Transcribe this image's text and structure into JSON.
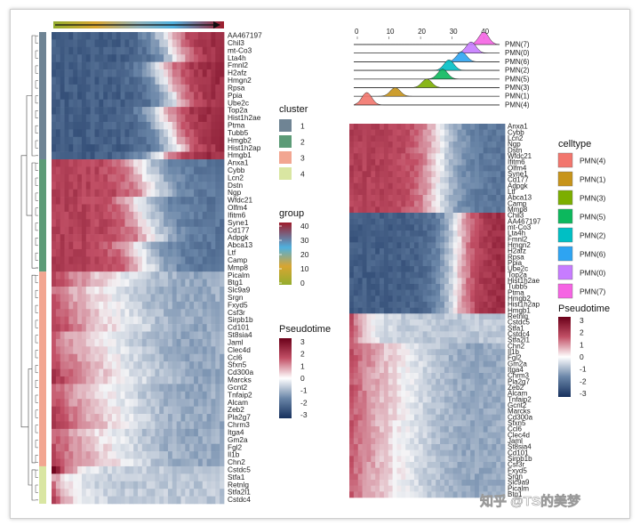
{
  "chart_data": [
    {
      "type": "heatmap",
      "title": "",
      "column_annotation": "pseudotime order (ascending, arrow)",
      "value_scale": {
        "name": "Pseudotime",
        "min": -3,
        "max": 3,
        "ticks": [
          3,
          2,
          1,
          0,
          -1,
          -2,
          -3
        ]
      },
      "clusters": [
        {
          "id": 1,
          "genes": [
            "AA467197",
            "Chil3",
            "mt-Co3",
            "Lta4h",
            "Fmnl2",
            "H2afz",
            "Hmgn2",
            "Rpsa",
            "Ppia",
            "Ube2c",
            "Top2a",
            "Hist1h2ae",
            "Ptma",
            "Tubb5",
            "Hmgb2",
            "Hist1h2ap",
            "Hmgb1"
          ]
        },
        {
          "id": 2,
          "genes": [
            "Anxa1",
            "Cybb",
            "Lcn2",
            "Dstn",
            "Ngp",
            "Wfdc21",
            "Olfm4",
            "Ifitm6",
            "Syne1",
            "Cd177",
            "Adpgk",
            "Abca13",
            "Ltf",
            "Camp",
            "Mmp8"
          ]
        },
        {
          "id": 3,
          "genes": [
            "Picalm",
            "Btg1",
            "Slc9a9",
            "Srgn",
            "Fxyd5",
            "Csf3r",
            "Sirpb1b",
            "Cd101",
            "St8sia4",
            "Jaml",
            "Clec4d",
            "Ccl6",
            "Sfxn5",
            "Cd300a",
            "Marcks",
            "Gcnt2",
            "Tnfaip2",
            "Alcam",
            "Zeb2",
            "Pla2g7",
            "Chrm3",
            "Itga4",
            "Gm2a",
            "Fgl2",
            "Il1b",
            "Chn2"
          ]
        },
        {
          "id": 4,
          "genes": [
            "Cstdc5",
            "Stfa1",
            "Retnlg",
            "Stfa2l1",
            "Cstdc4"
          ]
        }
      ]
    },
    {
      "type": "ridge",
      "title": "",
      "xlabel": "",
      "x_ticks": [
        0,
        10,
        20,
        30,
        40
      ],
      "xlim": [
        0,
        45
      ],
      "series": [
        {
          "name": "PMN(7)",
          "peak": 40,
          "height": 1.0
        },
        {
          "name": "PMN(0)",
          "peak": 36,
          "height": 0.9
        },
        {
          "name": "PMN(6)",
          "peak": 33,
          "height": 0.8
        },
        {
          "name": "PMN(2)",
          "peak": 29,
          "height": 0.85
        },
        {
          "name": "PMN(5)",
          "peak": 27,
          "height": 0.8
        },
        {
          "name": "PMN(3)",
          "peak": 22,
          "height": 0.7
        },
        {
          "name": "PMN(1)",
          "peak": 12,
          "height": 0.7
        },
        {
          "name": "PMN(4)",
          "peak": 3,
          "height": 1.0
        }
      ]
    },
    {
      "type": "heatmap",
      "title": "",
      "genes": [
        "Anxa1",
        "Cybb",
        "Lcn2",
        "Ngp",
        "Dstn",
        "Wfdc21",
        "Ifitm6",
        "Olfm4",
        "Syne1",
        "Cd177",
        "Adpgk",
        "Ltf",
        "Abca13",
        "Camp",
        "Mmp8",
        "Chil3",
        "AA467197",
        "mt-Co3",
        "Lta4h",
        "Fmnl2",
        "Hmgn2",
        "H2afz",
        "Rpsa",
        "Ppia",
        "Ube2c",
        "Top2a",
        "Hist1h2ae",
        "Tubb5",
        "Ptma",
        "Hmgb2",
        "Hist1h2ap",
        "Hmgb1",
        "Retnlg",
        "Cstdc5",
        "Stfa1",
        "Cstdc4",
        "Stfa2l1",
        "Chn2",
        "Il1b",
        "Fgl2",
        "Gm2a",
        "Itga4",
        "Chrm3",
        "Pla2g7",
        "Zeb2",
        "Alcam",
        "Tnfaip2",
        "Gcnt2",
        "Marcks",
        "Cd300a",
        "Sfxn5",
        "Ccl6",
        "Clec4d",
        "Jaml",
        "St8sia4",
        "Cd101",
        "Sirpb1b",
        "Csf3r",
        "Fxyd5",
        "Srgn",
        "Slc9a9",
        "Picalm",
        "Btg1"
      ],
      "value_scale": {
        "name": "Pseudotime",
        "min": -3,
        "max": 3
      }
    }
  ],
  "legends": {
    "cluster": {
      "title": "cluster",
      "items": [
        {
          "label": "1",
          "color": "#6f8494"
        },
        {
          "label": "2",
          "color": "#5c9b77"
        },
        {
          "label": "3",
          "color": "#f2a691"
        },
        {
          "label": "4",
          "color": "#d9e6a2"
        }
      ]
    },
    "group": {
      "title": "group",
      "ticks": [
        "40",
        "30",
        "20",
        "10",
        "0"
      ],
      "colors": [
        "#9e1b2a",
        "#4fb0de",
        "#d8a531",
        "#94ad2e"
      ]
    },
    "pseudotime": {
      "title": "Pseudotime",
      "ticks": [
        "3",
        "2",
        "1",
        "0",
        "-1",
        "-2",
        "-3"
      ],
      "colors": [
        "#6b0019",
        "#b93b52",
        "#ffffff",
        "#6a86a8",
        "#16305d"
      ]
    },
    "celltype": {
      "title": "celltype",
      "items": [
        {
          "label": "PMN(4)",
          "color": "#f2766d"
        },
        {
          "label": "PMN(1)",
          "color": "#c7941a"
        },
        {
          "label": "PMN(3)",
          "color": "#7cae00"
        },
        {
          "label": "PMN(5)",
          "color": "#0cb85d"
        },
        {
          "label": "PMN(2)",
          "color": "#00bfc4"
        },
        {
          "label": "PMN(6)",
          "color": "#2ea4f2"
        },
        {
          "label": "PMN(0)",
          "color": "#c77cff"
        },
        {
          "label": "PMN(7)",
          "color": "#f564e3"
        }
      ]
    }
  },
  "watermark": "知乎 @TS的美梦"
}
